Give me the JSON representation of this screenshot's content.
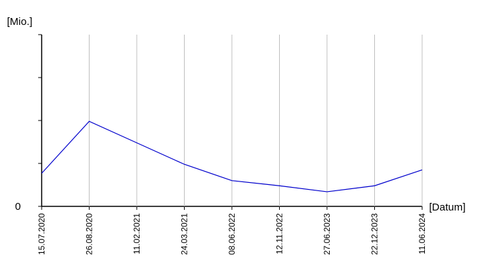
{
  "chart_data": {
    "type": "line",
    "y_label": "[Mio.]",
    "x_label": "[Datum]",
    "categories": [
      "15.07.2020",
      "26.08.2020",
      "11.02.2021",
      "24.03.2021",
      "08.06.2022",
      "12.11.2022",
      "27.06.2023",
      "22.12.2023",
      "11.06.2024"
    ],
    "series": [
      {
        "color": "#0000cc",
        "values": [
          0.77,
          1.98,
          1.48,
          0.98,
          0.6,
          0.48,
          0.34,
          0.48,
          0.85
        ]
      }
    ],
    "ylim": [
      0,
      4
    ],
    "yticks": [
      0
    ],
    "minor_yticks": [
      1,
      2,
      3,
      4
    ],
    "grid": true
  }
}
